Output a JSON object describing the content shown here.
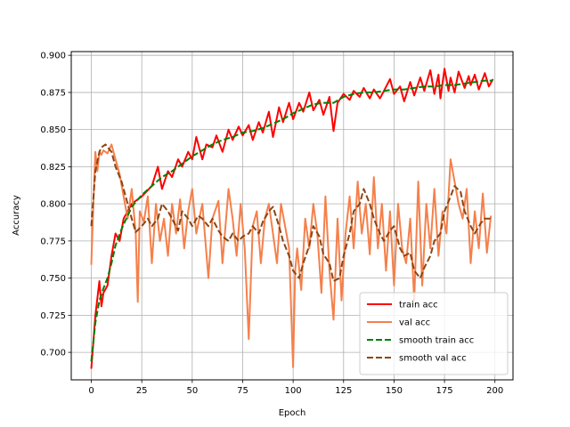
{
  "chart_data": {
    "type": "line",
    "title": "",
    "xlabel": "Epoch",
    "ylabel": "Accuracy",
    "xlim": [
      -9.95,
      208.95
    ],
    "ylim": [
      0.6815,
      0.9025
    ],
    "xticks": [
      0,
      25,
      50,
      75,
      100,
      125,
      150,
      175,
      200
    ],
    "yticks": [
      0.7,
      0.725,
      0.75,
      0.775,
      0.8,
      0.825,
      0.85,
      0.875,
      0.9
    ],
    "xtick_labels": [
      "0",
      "25",
      "50",
      "75",
      "100",
      "125",
      "150",
      "175",
      "200"
    ],
    "ytick_labels": [
      "0.700",
      "0.725",
      "0.750",
      "0.775",
      "0.800",
      "0.825",
      "0.850",
      "0.875",
      "0.900"
    ],
    "grid": true,
    "legend": "lower-right",
    "series": [
      {
        "name": "train acc",
        "color": "#ff0000",
        "style": "solid",
        "x": [
          0,
          2,
          4,
          5,
          6,
          8,
          10,
          12,
          14,
          16,
          18,
          20,
          25,
          30,
          33,
          35,
          38,
          40,
          43,
          45,
          48,
          50,
          52,
          55,
          57,
          60,
          62,
          65,
          68,
          70,
          73,
          75,
          78,
          80,
          83,
          85,
          88,
          90,
          93,
          95,
          98,
          100,
          103,
          105,
          108,
          110,
          113,
          115,
          118,
          120,
          122,
          125,
          128,
          130,
          133,
          135,
          138,
          140,
          143,
          145,
          148,
          150,
          153,
          155,
          158,
          160,
          163,
          165,
          168,
          170,
          172,
          173,
          175,
          177,
          178,
          180,
          182,
          185,
          187,
          188,
          190,
          192,
          195,
          197,
          199
        ],
        "y": [
          0.689,
          0.725,
          0.748,
          0.731,
          0.74,
          0.745,
          0.765,
          0.78,
          0.775,
          0.79,
          0.795,
          0.8,
          0.805,
          0.812,
          0.825,
          0.81,
          0.822,
          0.818,
          0.83,
          0.825,
          0.835,
          0.83,
          0.845,
          0.83,
          0.84,
          0.838,
          0.846,
          0.835,
          0.85,
          0.843,
          0.852,
          0.846,
          0.853,
          0.843,
          0.855,
          0.848,
          0.862,
          0.845,
          0.865,
          0.855,
          0.868,
          0.857,
          0.868,
          0.862,
          0.875,
          0.863,
          0.87,
          0.86,
          0.872,
          0.849,
          0.868,
          0.874,
          0.87,
          0.876,
          0.872,
          0.878,
          0.871,
          0.877,
          0.871,
          0.876,
          0.884,
          0.874,
          0.879,
          0.869,
          0.882,
          0.873,
          0.885,
          0.876,
          0.89,
          0.874,
          0.887,
          0.871,
          0.891,
          0.876,
          0.885,
          0.875,
          0.889,
          0.878,
          0.886,
          0.88,
          0.887,
          0.877,
          0.888,
          0.879,
          0.884
        ]
      },
      {
        "name": "val acc",
        "color": "#f5804b",
        "style": "solid",
        "x": [
          0,
          1,
          2,
          3,
          4,
          5,
          6,
          8,
          10,
          12,
          14,
          16,
          18,
          20,
          22,
          23,
          24,
          26,
          28,
          30,
          32,
          34,
          36,
          38,
          40,
          42,
          44,
          46,
          48,
          50,
          52,
          55,
          58,
          60,
          63,
          65,
          68,
          70,
          72,
          74,
          76,
          78,
          80,
          82,
          84,
          86,
          88,
          90,
          92,
          94,
          96,
          98,
          100,
          101,
          102,
          104,
          106,
          108,
          110,
          112,
          114,
          116,
          118,
          120,
          122,
          124,
          126,
          128,
          130,
          132,
          134,
          136,
          138,
          140,
          142,
          144,
          146,
          148,
          150,
          152,
          154,
          156,
          158,
          160,
          162,
          164,
          166,
          168,
          170,
          172,
          174,
          176,
          178,
          180,
          182,
          184,
          186,
          188,
          190,
          192,
          194,
          196,
          198
        ],
        "y": [
          0.759,
          0.8,
          0.835,
          0.822,
          0.835,
          0.833,
          0.836,
          0.834,
          0.84,
          0.83,
          0.82,
          0.805,
          0.79,
          0.81,
          0.78,
          0.734,
          0.795,
          0.788,
          0.805,
          0.76,
          0.8,
          0.775,
          0.79,
          0.765,
          0.8,
          0.78,
          0.803,
          0.77,
          0.795,
          0.81,
          0.78,
          0.8,
          0.75,
          0.79,
          0.802,
          0.76,
          0.81,
          0.79,
          0.765,
          0.8,
          0.77,
          0.709,
          0.785,
          0.795,
          0.76,
          0.79,
          0.8,
          0.78,
          0.76,
          0.8,
          0.785,
          0.77,
          0.69,
          0.755,
          0.77,
          0.742,
          0.79,
          0.77,
          0.8,
          0.78,
          0.74,
          0.805,
          0.755,
          0.722,
          0.79,
          0.735,
          0.78,
          0.805,
          0.77,
          0.815,
          0.78,
          0.8,
          0.766,
          0.818,
          0.77,
          0.8,
          0.755,
          0.795,
          0.745,
          0.8,
          0.77,
          0.76,
          0.79,
          0.735,
          0.815,
          0.745,
          0.8,
          0.77,
          0.81,
          0.765,
          0.795,
          0.78,
          0.83,
          0.815,
          0.8,
          0.79,
          0.81,
          0.76,
          0.795,
          0.77,
          0.807,
          0.767,
          0.792
        ]
      },
      {
        "name": "smooth train acc",
        "color": "#008000",
        "style": "dashed",
        "x": [
          0,
          2,
          4,
          6,
          8,
          10,
          12,
          15,
          18,
          20,
          25,
          30,
          35,
          40,
          45,
          50,
          55,
          60,
          65,
          70,
          75,
          80,
          85,
          90,
          95,
          100,
          105,
          110,
          115,
          120,
          125,
          130,
          135,
          140,
          145,
          150,
          155,
          160,
          165,
          170,
          175,
          180,
          185,
          190,
          195,
          199
        ],
        "y": [
          0.694,
          0.72,
          0.735,
          0.743,
          0.75,
          0.76,
          0.772,
          0.783,
          0.792,
          0.798,
          0.806,
          0.812,
          0.818,
          0.822,
          0.827,
          0.832,
          0.836,
          0.84,
          0.843,
          0.845,
          0.848,
          0.849,
          0.851,
          0.854,
          0.857,
          0.861,
          0.864,
          0.867,
          0.868,
          0.868,
          0.872,
          0.874,
          0.875,
          0.875,
          0.876,
          0.877,
          0.877,
          0.878,
          0.879,
          0.879,
          0.88,
          0.88,
          0.881,
          0.882,
          0.883,
          0.883
        ]
      },
      {
        "name": "smooth val acc",
        "color": "#8b4513",
        "style": "dashed",
        "x": [
          0,
          2,
          4,
          5,
          7,
          10,
          12,
          15,
          18,
          20,
          22,
          25,
          28,
          30,
          33,
          35,
          38,
          40,
          43,
          45,
          48,
          50,
          53,
          55,
          58,
          60,
          63,
          65,
          68,
          70,
          73,
          75,
          78,
          80,
          83,
          85,
          88,
          90,
          93,
          95,
          98,
          100,
          103,
          105,
          108,
          110,
          113,
          115,
          118,
          120,
          123,
          125,
          128,
          130,
          133,
          135,
          138,
          140,
          143,
          145,
          148,
          150,
          153,
          155,
          158,
          160,
          163,
          165,
          168,
          170,
          173,
          175,
          178,
          180,
          183,
          185,
          188,
          190,
          193,
          195,
          198
        ],
        "y": [
          0.785,
          0.822,
          0.835,
          0.838,
          0.84,
          0.835,
          0.825,
          0.815,
          0.8,
          0.79,
          0.781,
          0.785,
          0.79,
          0.785,
          0.79,
          0.8,
          0.795,
          0.79,
          0.782,
          0.795,
          0.79,
          0.785,
          0.792,
          0.79,
          0.785,
          0.79,
          0.782,
          0.778,
          0.775,
          0.78,
          0.775,
          0.778,
          0.78,
          0.785,
          0.78,
          0.788,
          0.795,
          0.798,
          0.785,
          0.775,
          0.765,
          0.755,
          0.75,
          0.76,
          0.772,
          0.785,
          0.778,
          0.766,
          0.76,
          0.748,
          0.75,
          0.765,
          0.78,
          0.795,
          0.8,
          0.81,
          0.8,
          0.79,
          0.78,
          0.775,
          0.782,
          0.785,
          0.77,
          0.765,
          0.767,
          0.755,
          0.75,
          0.757,
          0.765,
          0.775,
          0.78,
          0.795,
          0.805,
          0.812,
          0.808,
          0.795,
          0.785,
          0.78,
          0.787,
          0.79,
          0.79
        ]
      }
    ]
  }
}
